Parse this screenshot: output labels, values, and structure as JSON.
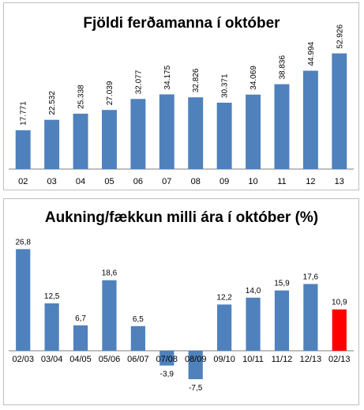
{
  "chart_data": [
    {
      "type": "bar",
      "title": "Fjöldi ferðamanna í október",
      "xlabel": "",
      "ylabel": "",
      "categories": [
        "02",
        "03",
        "04",
        "05",
        "06",
        "07",
        "08",
        "09",
        "10",
        "11",
        "12",
        "13"
      ],
      "values": [
        17771,
        22532,
        25338,
        27039,
        32077,
        34175,
        32826,
        30371,
        34069,
        38836,
        44994,
        52926
      ],
      "value_labels": [
        "17.771",
        "22.532",
        "25.338",
        "27.039",
        "32.077",
        "34.175",
        "32.826",
        "30.371",
        "34.069",
        "38.836",
        "44.994",
        "52.926"
      ],
      "ylim": [
        0,
        60000
      ],
      "value_label_rotation": "vertical",
      "bar_color": "#4f81bd",
      "grid": false,
      "legend": "none"
    },
    {
      "type": "bar",
      "title": "Aukning/fækkun milli ára í október (%)",
      "xlabel": "",
      "ylabel": "",
      "categories": [
        "02/03",
        "03/04",
        "04/05",
        "05/06",
        "06/07",
        "07/08",
        "08/09",
        "09/10",
        "10/11",
        "11/12",
        "12/13",
        "02/13"
      ],
      "values": [
        26.8,
        12.5,
        6.7,
        18.6,
        6.5,
        -3.9,
        -7.5,
        12.2,
        14.0,
        15.9,
        17.6,
        10.9
      ],
      "value_labels": [
        "26,8",
        "12,5",
        "6,7",
        "18,6",
        "6,5",
        "-3,9",
        "-7,5",
        "12,2",
        "14,0",
        "15,9",
        "17,6",
        "10,9"
      ],
      "ylim": [
        -10,
        30
      ],
      "bar_color": "#4f81bd",
      "highlight_color": "#ff0000",
      "highlight_category": "02/13",
      "grid": false,
      "legend": "none"
    }
  ]
}
